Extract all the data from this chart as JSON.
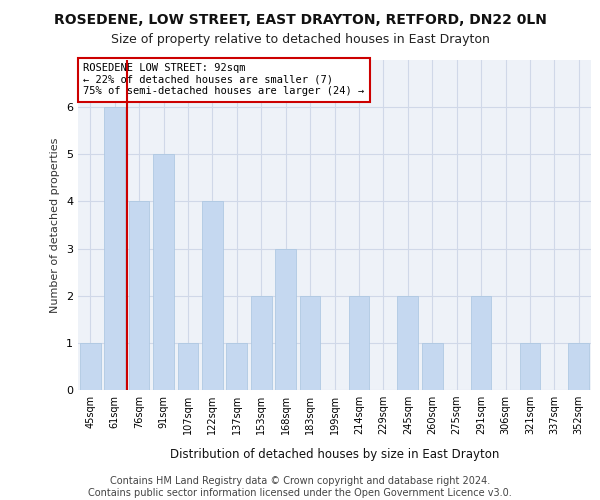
{
  "title1": "ROSEDENE, LOW STREET, EAST DRAYTON, RETFORD, DN22 0LN",
  "title2": "Size of property relative to detached houses in East Drayton",
  "xlabel": "Distribution of detached houses by size in East Drayton",
  "ylabel": "Number of detached properties",
  "categories": [
    "45sqm",
    "61sqm",
    "76sqm",
    "91sqm",
    "107sqm",
    "122sqm",
    "137sqm",
    "153sqm",
    "168sqm",
    "183sqm",
    "199sqm",
    "214sqm",
    "229sqm",
    "245sqm",
    "260sqm",
    "275sqm",
    "291sqm",
    "306sqm",
    "321sqm",
    "337sqm",
    "352sqm"
  ],
  "values": [
    1,
    6,
    4,
    5,
    1,
    4,
    1,
    2,
    3,
    2,
    0,
    2,
    0,
    2,
    1,
    0,
    2,
    0,
    1,
    0,
    1
  ],
  "bar_color": "#c5d8f0",
  "bar_edgecolor": "#a8c4e0",
  "grid_color": "#d0d8e8",
  "background_color": "#eef2f8",
  "vline_color": "#cc0000",
  "vline_x_index": 1.5,
  "annotation_text": "ROSEDENE LOW STREET: 92sqm\n← 22% of detached houses are smaller (7)\n75% of semi-detached houses are larger (24) →",
  "annotation_box_edgecolor": "#cc0000",
  "ylim_max": 7,
  "footnote": "Contains HM Land Registry data © Crown copyright and database right 2024.\nContains public sector information licensed under the Open Government Licence v3.0.",
  "title_fontsize": 10,
  "subtitle_fontsize": 9,
  "annotation_fontsize": 7.5,
  "ylabel_fontsize": 8,
  "xlabel_fontsize": 8.5,
  "tick_fontsize": 7,
  "footnote_fontsize": 7
}
